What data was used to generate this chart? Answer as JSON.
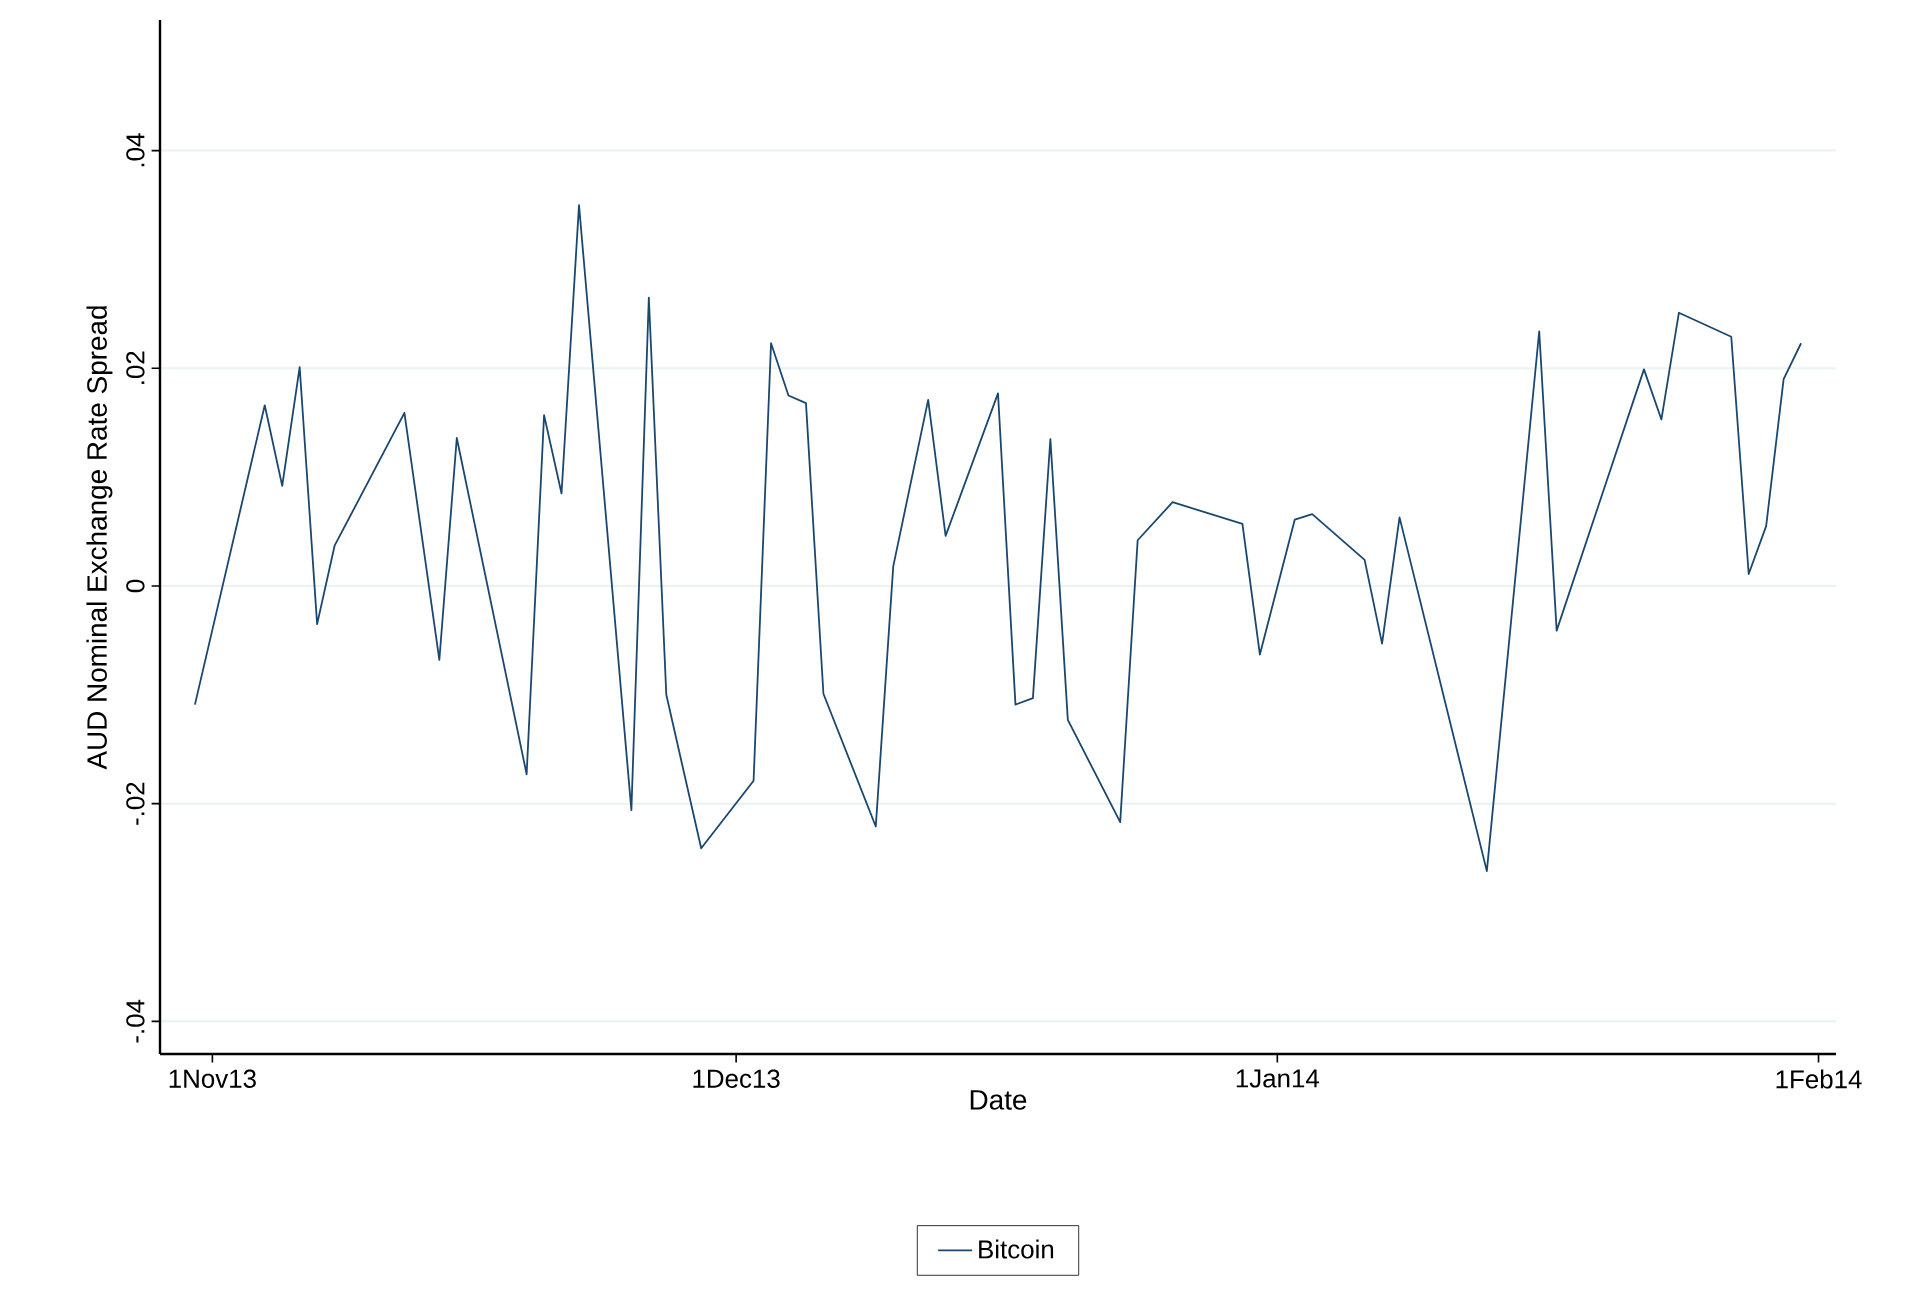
{
  "chart_data": {
    "type": "line",
    "xlabel": "Date",
    "ylabel": "AUD Nominal Exchange Rate Spread",
    "x": [
      "2013-10-31",
      "2013-11-04",
      "2013-11-05",
      "2013-11-06",
      "2013-11-07",
      "2013-11-08",
      "2013-11-12",
      "2013-11-14",
      "2013-11-15",
      "2013-11-19",
      "2013-11-20",
      "2013-11-21",
      "2013-11-22",
      "2013-11-25",
      "2013-11-26",
      "2013-11-27",
      "2013-11-29",
      "2013-12-02",
      "2013-12-03",
      "2013-12-04",
      "2013-12-05",
      "2013-12-06",
      "2013-12-09",
      "2013-12-10",
      "2013-12-12",
      "2013-12-13",
      "2013-12-16",
      "2013-12-17",
      "2013-12-18",
      "2013-12-19",
      "2013-12-20",
      "2013-12-23",
      "2013-12-24",
      "2013-12-26",
      "2013-12-30",
      "2013-12-31",
      "2014-01-02",
      "2014-01-03",
      "2014-01-06",
      "2014-01-07",
      "2014-01-08",
      "2014-01-13",
      "2014-01-16",
      "2014-01-17",
      "2014-01-22",
      "2014-01-23",
      "2014-01-24",
      "2014-01-27",
      "2014-01-28",
      "2014-01-29",
      "2014-01-30",
      "2014-01-31"
    ],
    "series": [
      {
        "name": "Bitcoin",
        "color": "#1a476f",
        "values": [
          -0.0109,
          0.0166,
          0.0092,
          0.0201,
          -0.0035,
          0.0037,
          0.0159,
          -0.0068,
          0.0136,
          -0.0173,
          0.0157,
          0.0085,
          0.035,
          -0.0206,
          0.0265,
          -0.01,
          -0.0241,
          -0.0179,
          0.0223,
          0.0175,
          0.0168,
          -0.0099,
          -0.0221,
          0.0018,
          0.0171,
          0.0046,
          0.0177,
          -0.0109,
          -0.0103,
          0.0135,
          -0.0123,
          -0.0217,
          0.0042,
          0.0077,
          0.0057,
          -0.0063,
          0.0061,
          0.0066,
          0.0024,
          -0.0053,
          0.0063,
          -0.0262,
          0.0234,
          -0.0041,
          0.0199,
          0.0153,
          0.0251,
          0.0229,
          0.0011,
          0.0055,
          0.019,
          0.0223
        ]
      }
    ],
    "xlim": [
      "2013-10-29",
      "2014-02-02"
    ],
    "xticks": [
      {
        "value": "2013-11-01",
        "label": "1Nov13"
      },
      {
        "value": "2013-12-01",
        "label": "1Dec13"
      },
      {
        "value": "2014-01-01",
        "label": "1Jan14"
      },
      {
        "value": "2014-02-01",
        "label": "1Feb14"
      }
    ],
    "ylim": [
      -0.043,
      0.052
    ],
    "yticks": [
      {
        "value": -0.04,
        "label": "-.04"
      },
      {
        "value": -0.02,
        "label": "-.02"
      },
      0,
      {
        "value": 0.02,
        "label": ".02"
      },
      {
        "value": 0.04,
        "label": ".04"
      }
    ],
    "grid": "y",
    "legend": "bottom",
    "marker": "none",
    "line_style": "solid"
  }
}
